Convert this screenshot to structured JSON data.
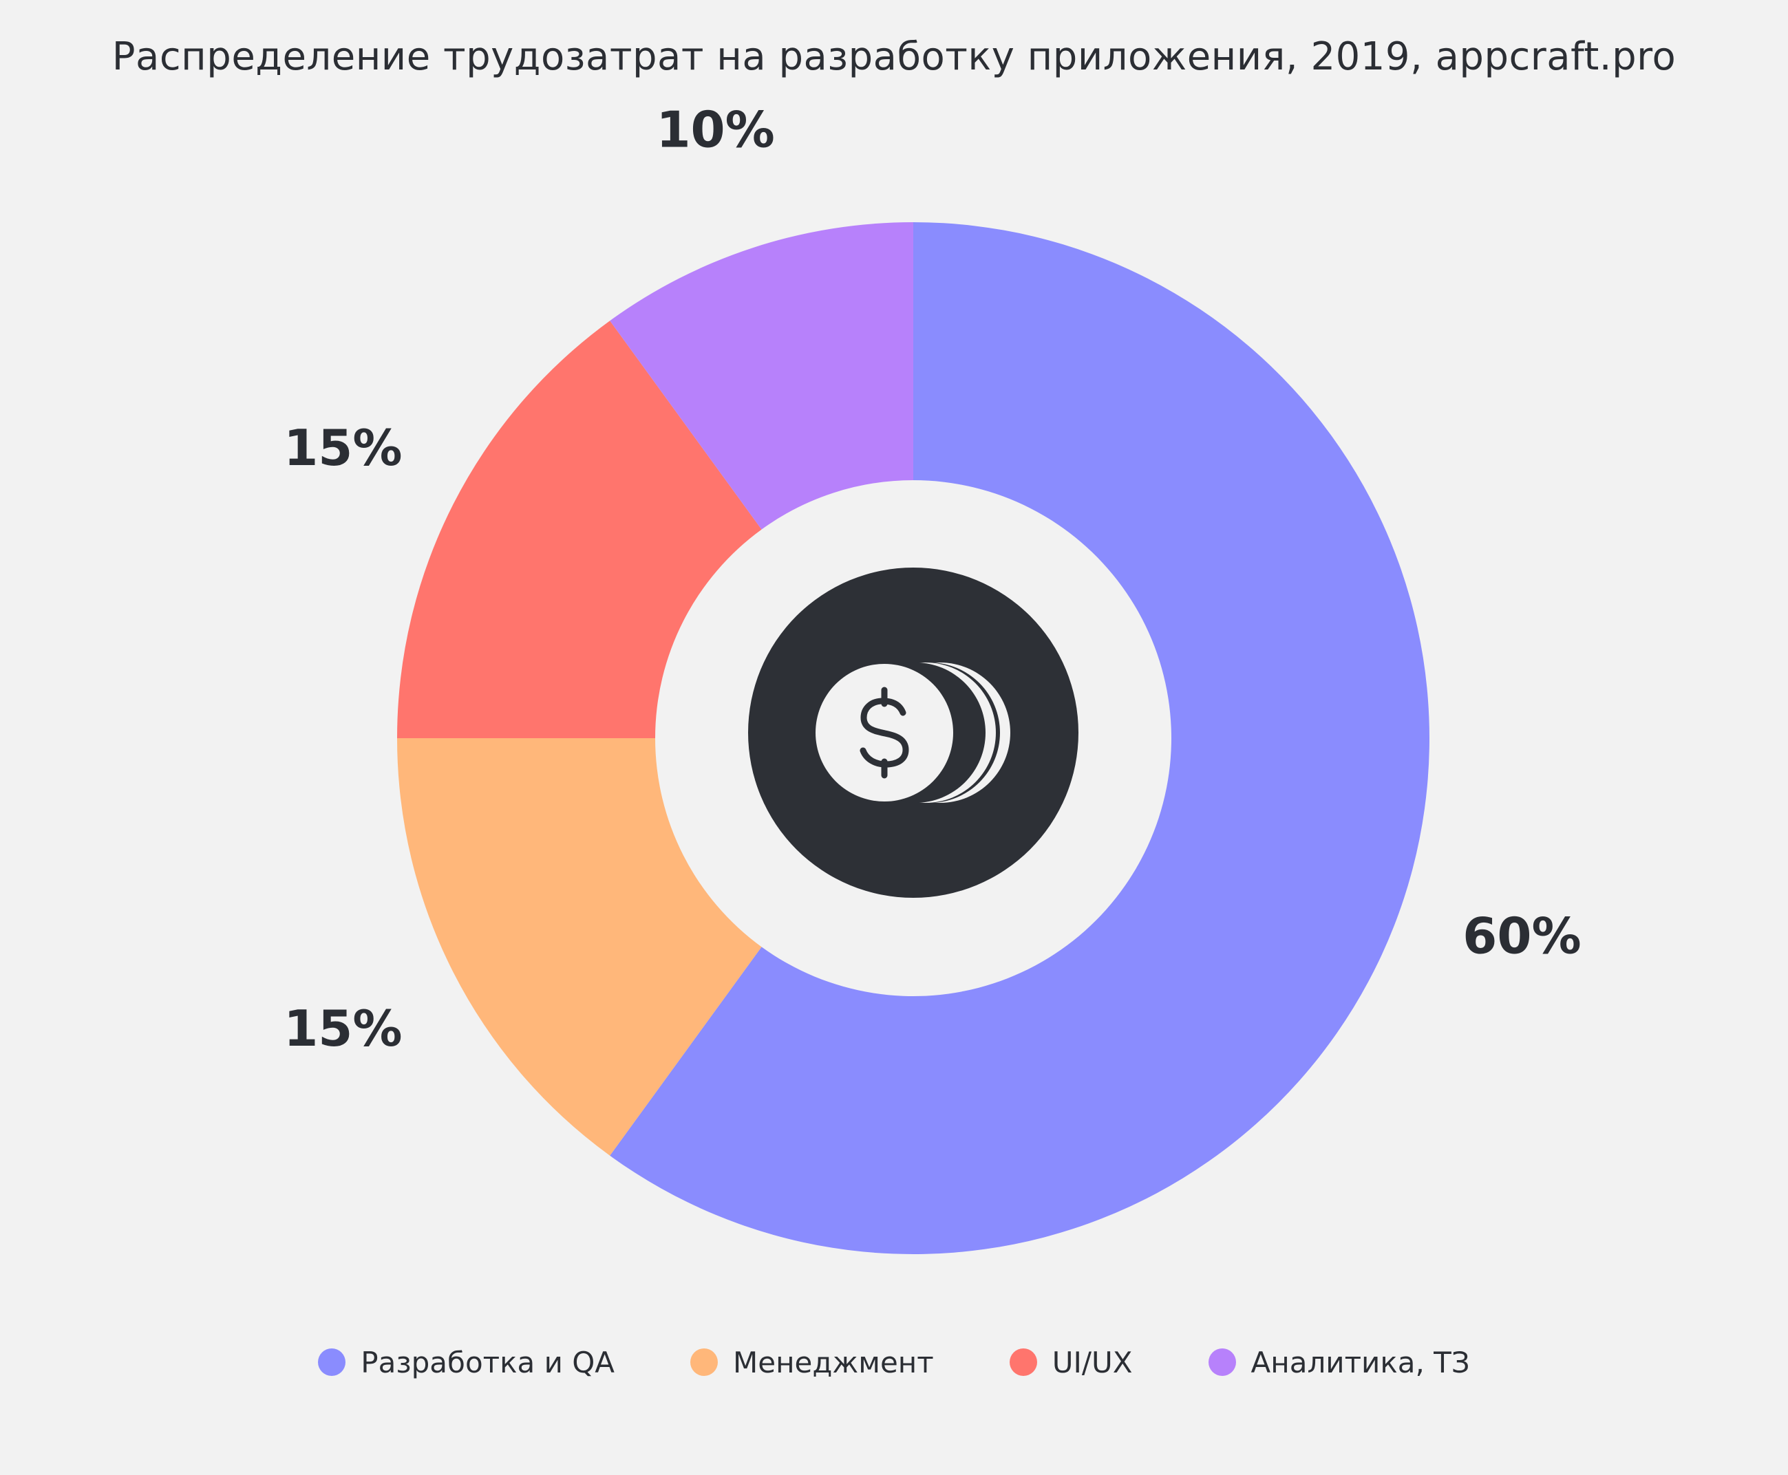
{
  "chart_data": {
    "type": "pie",
    "title": "Распределение трудозатрат на разработку приложения, 2019, appcraft.pro",
    "categories": [
      "Разработка и QA",
      "Менеджмент",
      "UI/UX",
      "Аналитика, ТЗ"
    ],
    "values": [
      60,
      15,
      15,
      10
    ],
    "value_labels": [
      "60%",
      "15%",
      "15%",
      "10%"
    ],
    "colors": [
      "#8a8cfe",
      "#ffb77a",
      "#ff756d",
      "#b781fb"
    ],
    "donut": true,
    "center_icon": "coins-dollar-icon",
    "legend": "bottom"
  },
  "theme": {
    "background": "#f2f2f2",
    "text": "#2b2e34",
    "icon_disc": "#2d3036"
  }
}
